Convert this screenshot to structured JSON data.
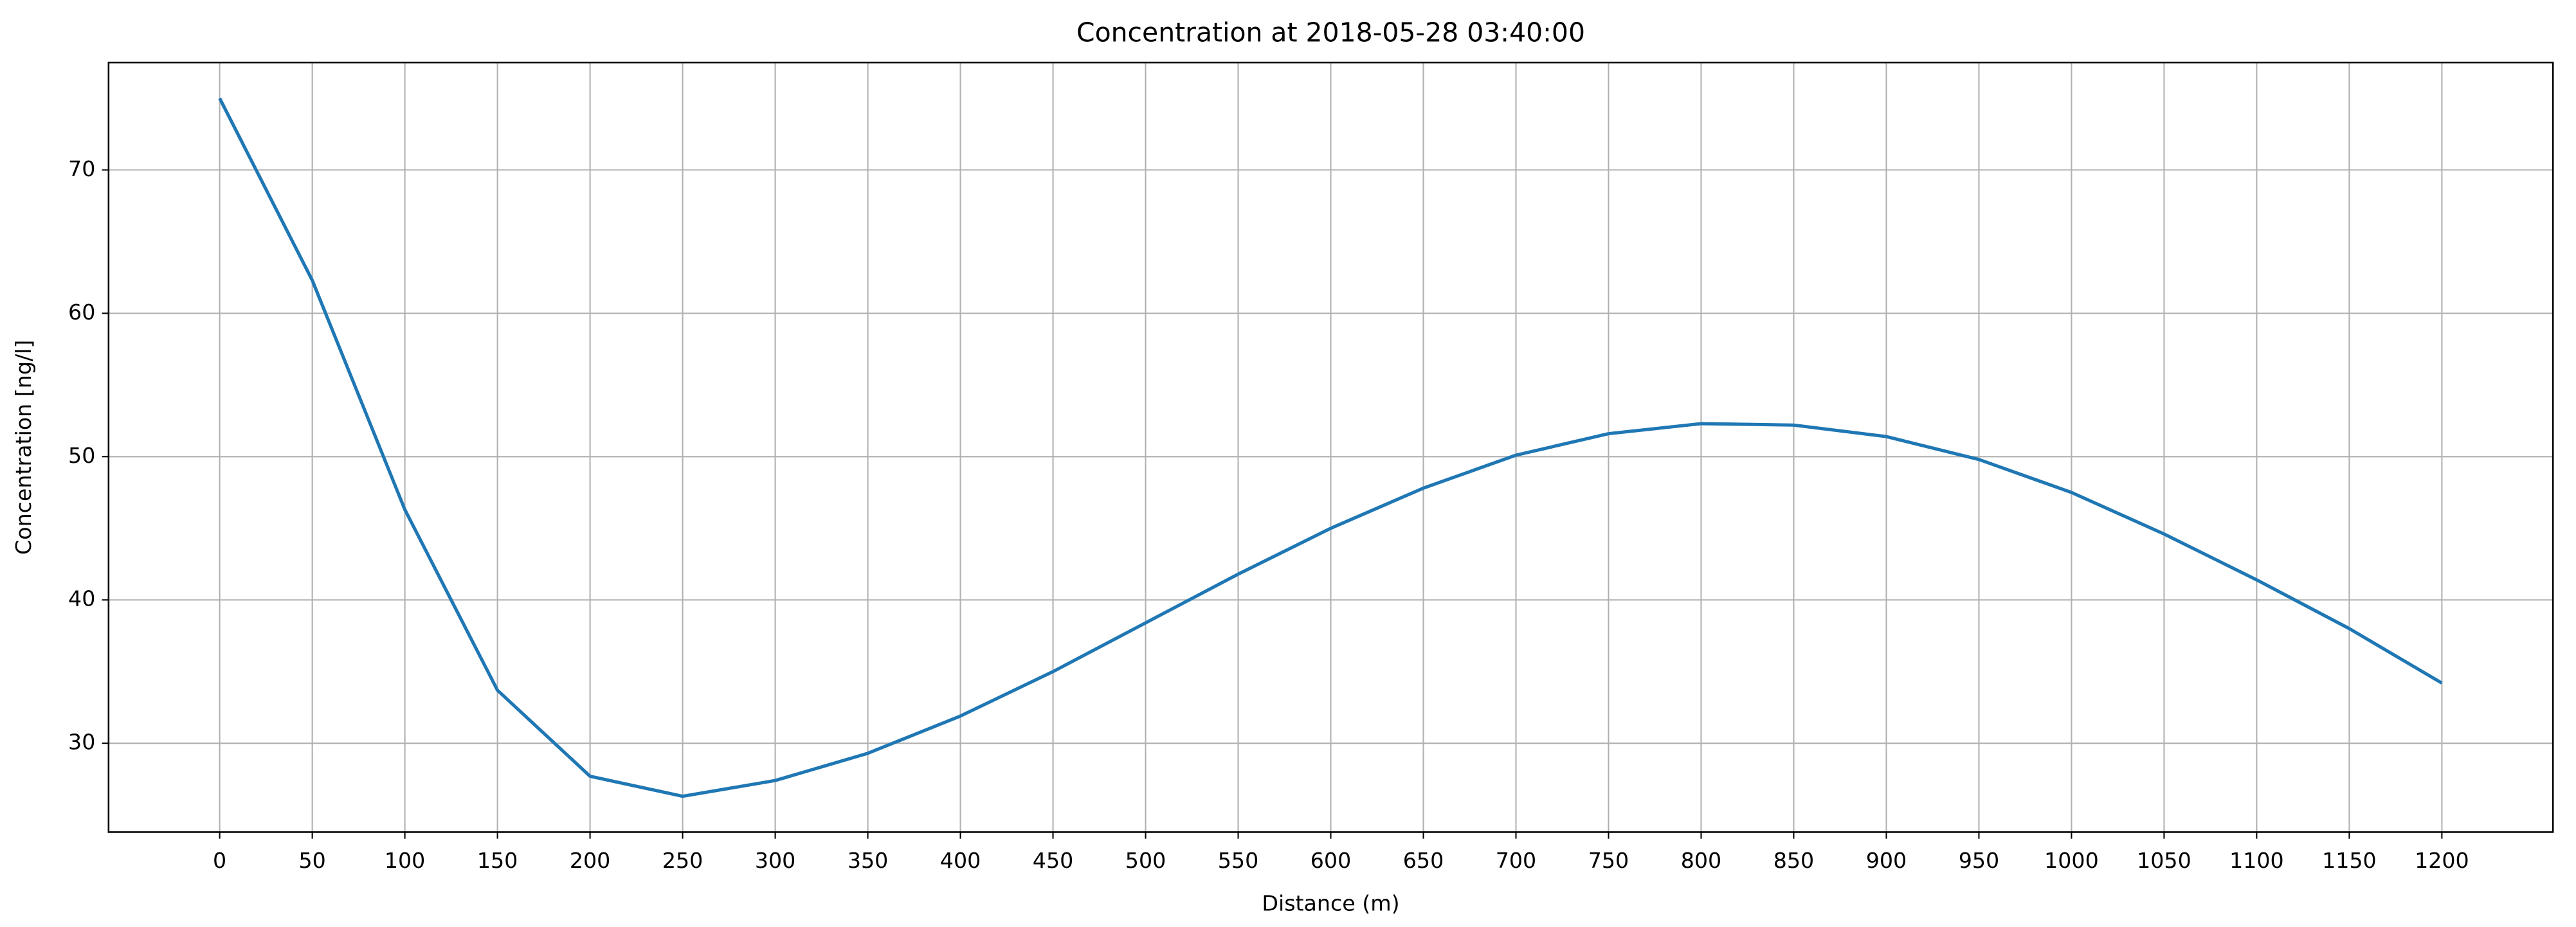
{
  "chart_data": {
    "type": "line",
    "title": "Concentration at 2018-05-28 03:40:00",
    "xlabel": "Distance (m)",
    "ylabel": "Concentration [ng/l]",
    "x": [
      0,
      50,
      100,
      150,
      200,
      250,
      300,
      350,
      400,
      450,
      500,
      550,
      600,
      650,
      700,
      750,
      800,
      850,
      900,
      950,
      1000,
      1050,
      1100,
      1150,
      1200
    ],
    "series": [
      {
        "color": "#1f77b4",
        "values": [
          75.0,
          62.3,
          46.3,
          33.7,
          27.7,
          26.3,
          27.4,
          29.3,
          31.9,
          35.0,
          38.4,
          41.8,
          45.0,
          47.8,
          50.1,
          51.6,
          52.3,
          52.2,
          51.4,
          49.8,
          47.5,
          44.6,
          41.4,
          38.0,
          34.2
        ]
      }
    ],
    "xlim": [
      -60,
      1260
    ],
    "ylim": [
      23.8,
      77.5
    ],
    "xticks": [
      0,
      50,
      100,
      150,
      200,
      250,
      300,
      350,
      400,
      450,
      500,
      550,
      600,
      650,
      700,
      750,
      800,
      850,
      900,
      950,
      1000,
      1050,
      1100,
      1150,
      1200
    ],
    "yticks": [
      30,
      40,
      50,
      60,
      70
    ],
    "grid": true
  }
}
